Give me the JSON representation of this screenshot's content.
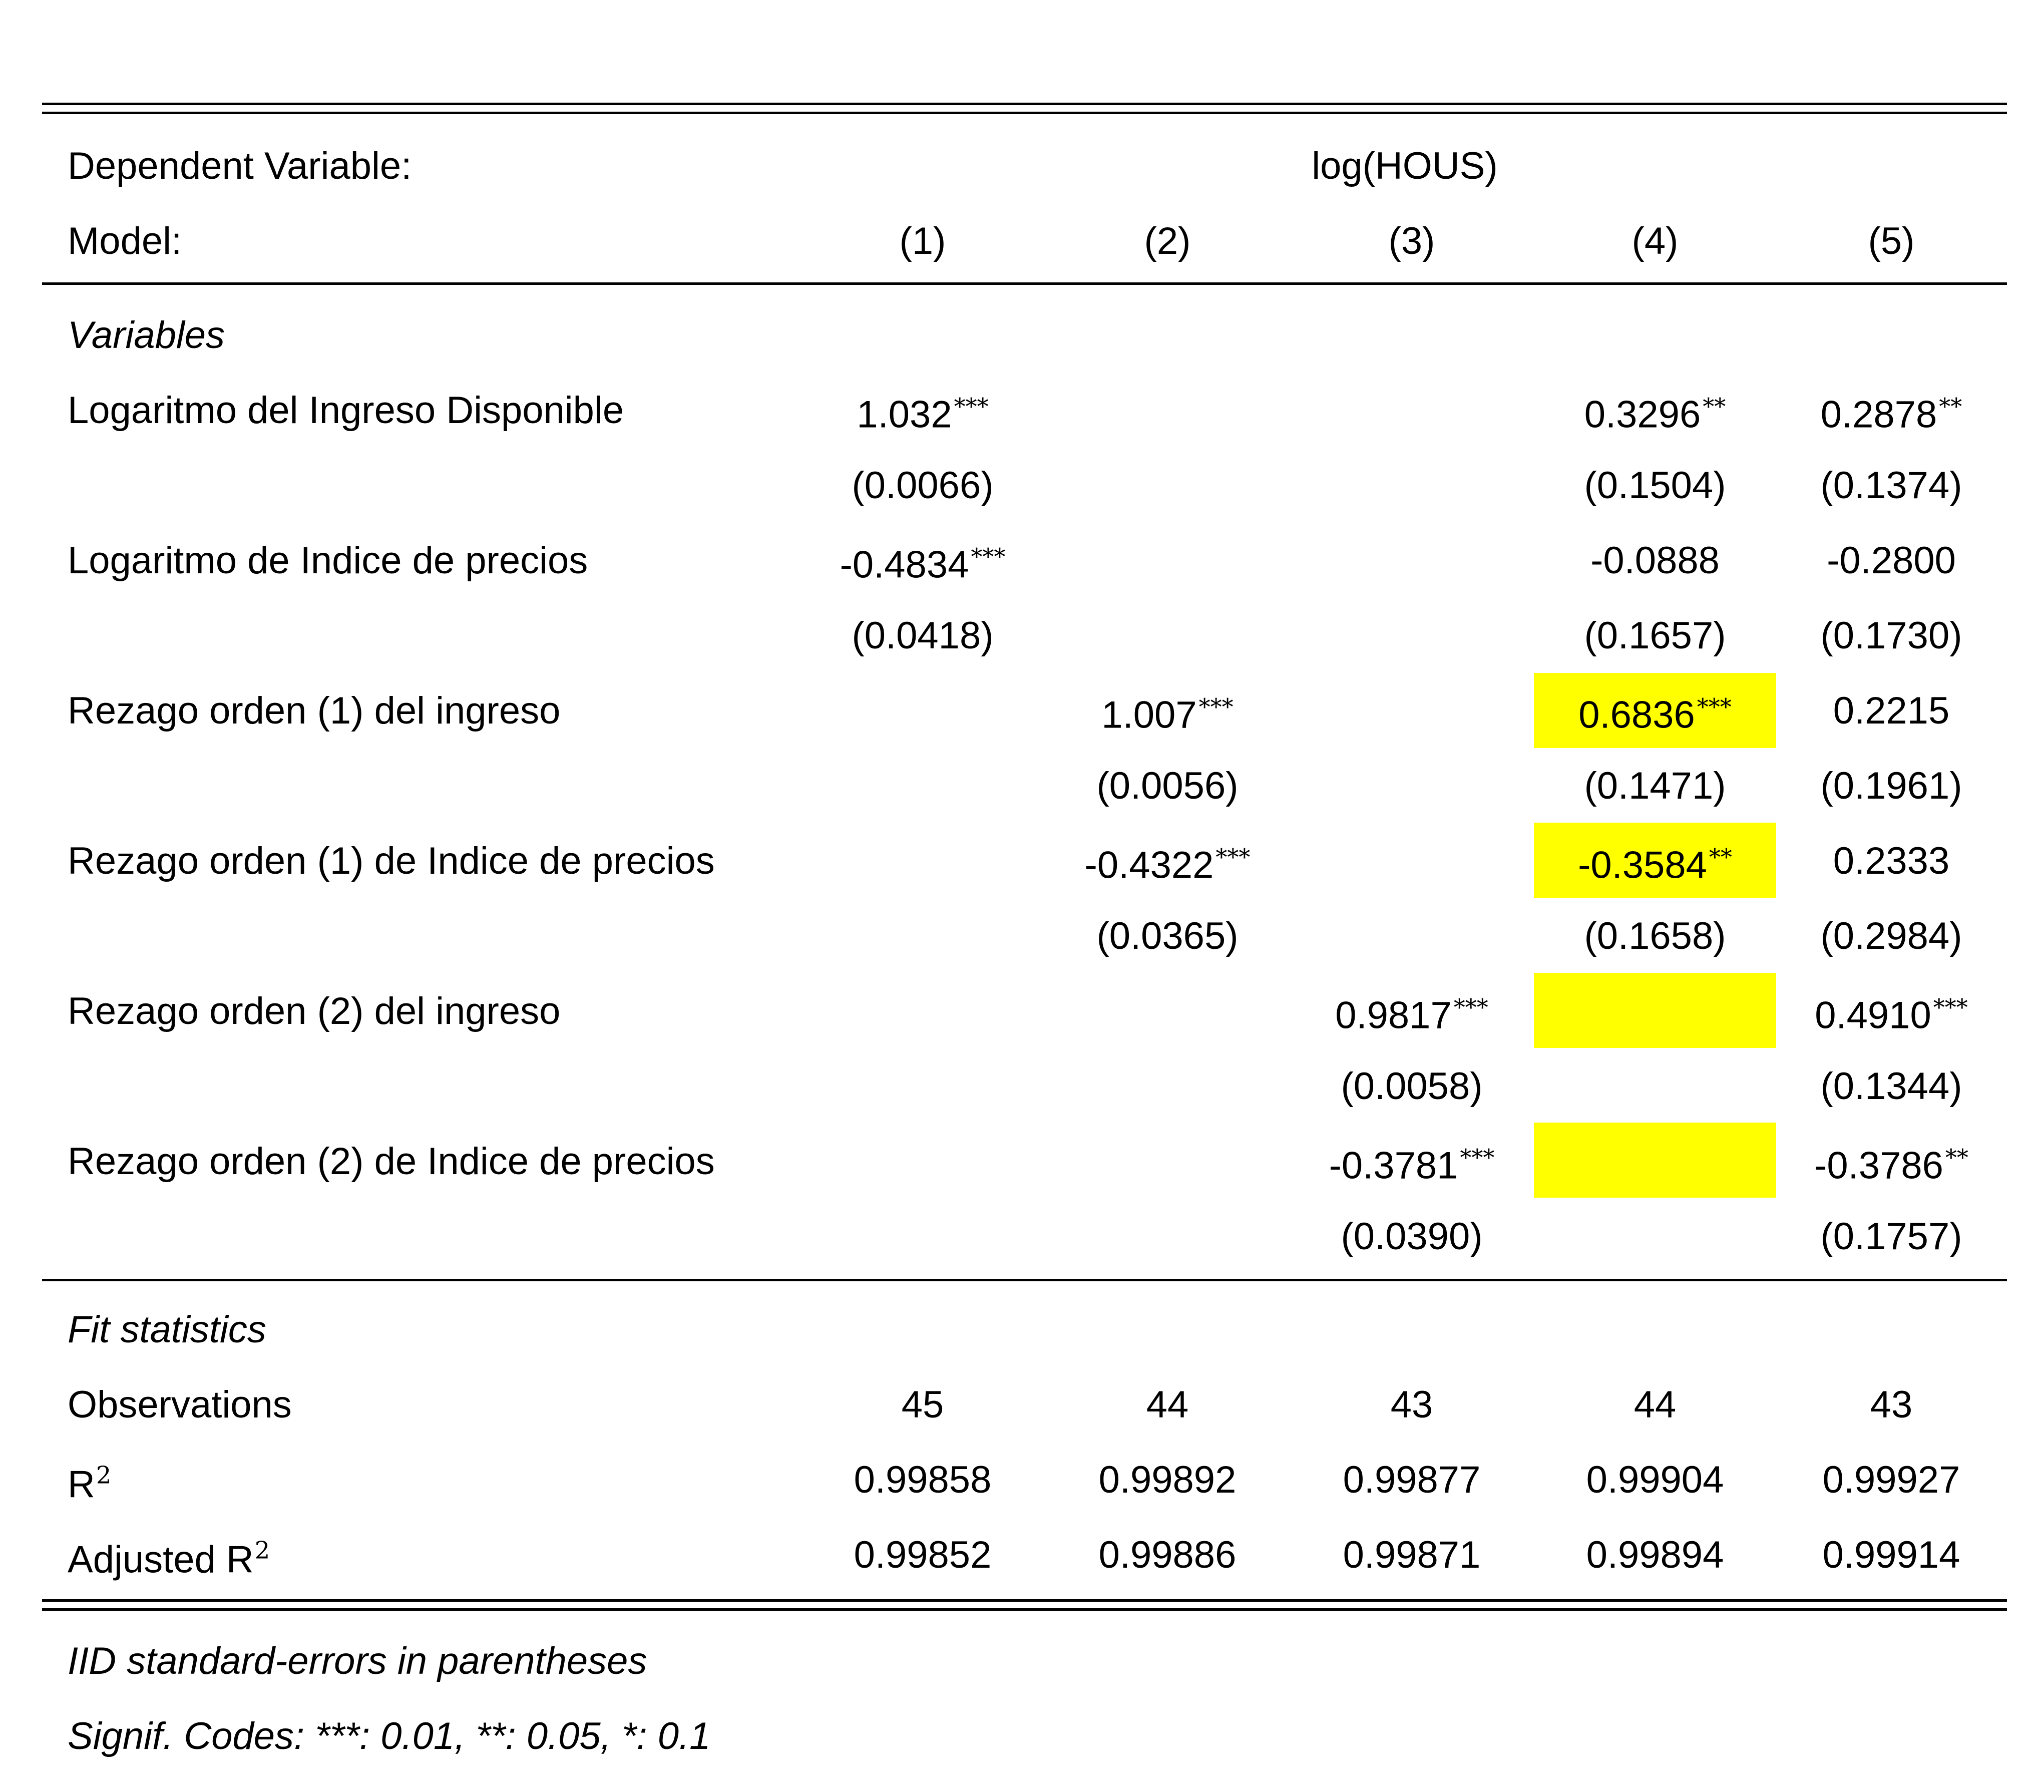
{
  "header": {
    "dependent_label": "Dependent Variable:",
    "dependent_value": "log(HOUS)",
    "model_label": "Model:",
    "models": [
      "(1)",
      "(2)",
      "(3)",
      "(4)",
      "(5)"
    ]
  },
  "sections": {
    "variables": "Variables",
    "fit": "Fit statistics"
  },
  "variables": [
    {
      "name": "Logaritmo del Ingreso Disponible",
      "coefs": [
        {
          "v": "1.032",
          "s": "***"
        },
        {
          "v": "",
          "s": ""
        },
        {
          "v": "",
          "s": ""
        },
        {
          "v": "0.3296",
          "s": "**"
        },
        {
          "v": "0.2878",
          "s": "**"
        }
      ],
      "se": [
        "(0.0066)",
        "",
        "",
        "(0.1504)",
        "(0.1374)"
      ]
    },
    {
      "name": "Logaritmo de Indice de precios",
      "coefs": [
        {
          "v": "-0.4834",
          "s": "***"
        },
        {
          "v": "",
          "s": ""
        },
        {
          "v": "",
          "s": ""
        },
        {
          "v": "-0.0888",
          "s": ""
        },
        {
          "v": "-0.2800",
          "s": ""
        }
      ],
      "se": [
        "(0.0418)",
        "",
        "",
        "(0.1657)",
        "(0.1730)"
      ]
    },
    {
      "name": "Rezago orden (1) del ingreso",
      "coefs": [
        {
          "v": "",
          "s": ""
        },
        {
          "v": "1.007",
          "s": "***"
        },
        {
          "v": "",
          "s": ""
        },
        {
          "v": "0.6836",
          "s": "***"
        },
        {
          "v": "0.2215",
          "s": ""
        }
      ],
      "se": [
        "",
        "(0.0056)",
        "",
        "(0.1471)",
        "(0.1961)"
      ]
    },
    {
      "name": "Rezago orden (1) de Indice de precios",
      "coefs": [
        {
          "v": "",
          "s": ""
        },
        {
          "v": "-0.4322",
          "s": "***"
        },
        {
          "v": "",
          "s": ""
        },
        {
          "v": "-0.3584",
          "s": "**"
        },
        {
          "v": "0.2333",
          "s": ""
        }
      ],
      "se": [
        "",
        "(0.0365)",
        "",
        "(0.1658)",
        "(0.2984)"
      ]
    },
    {
      "name": "Rezago orden (2) del ingreso",
      "coefs": [
        {
          "v": "",
          "s": ""
        },
        {
          "v": "",
          "s": ""
        },
        {
          "v": "0.9817",
          "s": "***"
        },
        {
          "v": "",
          "s": ""
        },
        {
          "v": "0.4910",
          "s": "***"
        }
      ],
      "se": [
        "",
        "",
        "(0.0058)",
        "",
        "(0.1344)"
      ]
    },
    {
      "name": "Rezago orden (2) de Indice de precios",
      "coefs": [
        {
          "v": "",
          "s": ""
        },
        {
          "v": "",
          "s": ""
        },
        {
          "v": "-0.3781",
          "s": "***"
        },
        {
          "v": "",
          "s": ""
        },
        {
          "v": "-0.3786",
          "s": "**"
        }
      ],
      "se": [
        "",
        "",
        "(0.0390)",
        "",
        "(0.1757)"
      ]
    }
  ],
  "fit_stats": [
    {
      "name": "Observations",
      "sup": "",
      "values": [
        "45",
        "44",
        "43",
        "44",
        "43"
      ]
    },
    {
      "name": "R",
      "sup": "2",
      "values": [
        "0.99858",
        "0.99892",
        "0.99877",
        "0.99904",
        "0.99927"
      ]
    },
    {
      "name": "Adjusted R",
      "sup": "2",
      "values": [
        "0.99852",
        "0.99886",
        "0.99871",
        "0.99894",
        "0.99914"
      ]
    }
  ],
  "highlight_color": "#ffff00",
  "notes": [
    "IID standard-errors in parentheses",
    "Signif. Codes: ***: 0.01, **: 0.05, *: 0.1"
  ]
}
